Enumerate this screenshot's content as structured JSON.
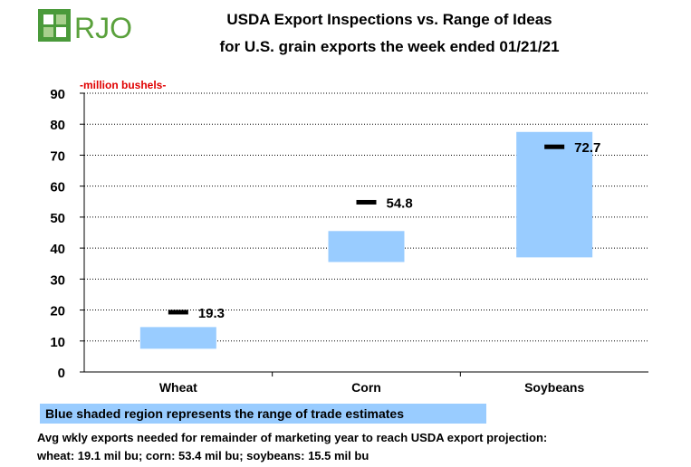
{
  "logo": {
    "text": "RJO",
    "colors": {
      "green": "#4a9a3a",
      "light": "#a8d08d",
      "text": "#5aa13c"
    }
  },
  "title_lines": [
    "USDA Export Inspections vs. Range of Ideas",
    "for U.S. grain exports the week ended 01/21/21"
  ],
  "unit_label": "-million bushels-",
  "legend_text": "Blue shaded region represents the range of trade estimates",
  "notes": [
    "Avg wkly exports needed for remainder of marketing year to reach USDA export projection:",
    "wheat: 19.1 mil bu; corn: 53.4 mil bu; soybeans: 15.5 mil bu"
  ],
  "chart_data": {
    "type": "bar",
    "categories": [
      "Wheat",
      "Corn",
      "Soybeans"
    ],
    "ranges": [
      [
        7.5,
        14.5
      ],
      [
        35.5,
        45.5
      ],
      [
        37,
        77.5
      ]
    ],
    "actual": [
      19.3,
      54.8,
      72.7
    ],
    "actual_labels": [
      "19.3",
      "54.8",
      "72.7"
    ],
    "ylim": [
      0,
      90
    ],
    "yticks": [
      0,
      10,
      20,
      30,
      40,
      50,
      60,
      70,
      80,
      90
    ],
    "grid": true,
    "colors": {
      "range": "#99ccff",
      "actual": "#000000",
      "grid": "#000000"
    }
  }
}
